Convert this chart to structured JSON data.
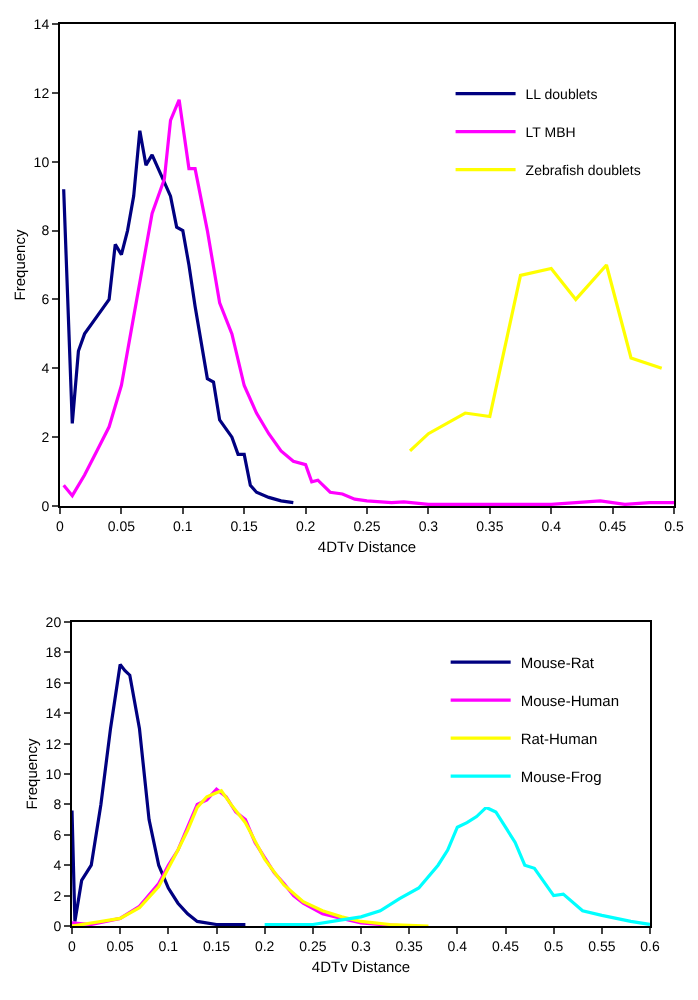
{
  "chart_data": [
    {
      "type": "line",
      "xlabel": "4DTv Distance",
      "ylabel": "Frequency",
      "xlim": [
        0,
        0.5
      ],
      "ylim": [
        0,
        14
      ],
      "xticks": [
        0,
        0.05,
        0.1,
        0.15,
        0.2,
        0.25,
        0.3,
        0.35,
        0.4,
        0.45,
        0.5
      ],
      "yticks": [
        0,
        2,
        4,
        6,
        8,
        10,
        12,
        14
      ],
      "grid": false,
      "legend": "top right",
      "marker": "none",
      "line_style": "solid",
      "series": [
        {
          "name": "LL doublets",
          "color": "#000080",
          "x": [
            0.003,
            0.01,
            0.015,
            0.02,
            0.03,
            0.04,
            0.045,
            0.05,
            0.055,
            0.06,
            0.065,
            0.07,
            0.075,
            0.08,
            0.085,
            0.09,
            0.095,
            0.1,
            0.105,
            0.11,
            0.12,
            0.125,
            0.13,
            0.14,
            0.145,
            0.15,
            0.155,
            0.16,
            0.17,
            0.18,
            0.19
          ],
          "values": [
            9.2,
            2.4,
            4.5,
            5.0,
            5.5,
            6.0,
            7.6,
            7.3,
            8.0,
            9.0,
            10.9,
            9.9,
            10.2,
            9.8,
            9.4,
            9.0,
            8.1,
            8.0,
            7.0,
            5.8,
            3.7,
            3.6,
            2.5,
            2.0,
            1.5,
            1.5,
            0.6,
            0.4,
            0.25,
            0.15,
            0.1
          ]
        },
        {
          "name": "LT MBH",
          "color": "#ff00ff",
          "x": [
            0.003,
            0.01,
            0.02,
            0.03,
            0.04,
            0.05,
            0.06,
            0.065,
            0.07,
            0.075,
            0.085,
            0.09,
            0.097,
            0.105,
            0.11,
            0.12,
            0.13,
            0.14,
            0.15,
            0.16,
            0.17,
            0.18,
            0.19,
            0.2,
            0.205,
            0.21,
            0.22,
            0.23,
            0.24,
            0.25,
            0.27,
            0.28,
            0.3,
            0.35,
            0.4,
            0.44,
            0.46,
            0.48,
            0.5
          ],
          "values": [
            0.6,
            0.3,
            0.9,
            1.6,
            2.3,
            3.5,
            5.5,
            6.5,
            7.5,
            8.5,
            9.5,
            11.2,
            11.8,
            9.8,
            9.8,
            8.0,
            5.9,
            5.0,
            3.5,
            2.7,
            2.1,
            1.6,
            1.3,
            1.2,
            0.7,
            0.75,
            0.4,
            0.35,
            0.2,
            0.15,
            0.1,
            0.12,
            0.05,
            0.05,
            0.05,
            0.15,
            0.05,
            0.1,
            0.1
          ]
        },
        {
          "name": "Zebrafish doublets",
          "color": "#ffff00",
          "x": [
            0.285,
            0.3,
            0.33,
            0.35,
            0.375,
            0.4,
            0.42,
            0.445,
            0.465,
            0.49
          ],
          "values": [
            1.6,
            2.1,
            2.7,
            2.6,
            6.7,
            6.9,
            6.0,
            7.0,
            4.3,
            4.0
          ]
        }
      ]
    },
    {
      "type": "line",
      "xlabel": "4DTv Distance",
      "ylabel": "Frequency",
      "xlim": [
        0,
        0.6
      ],
      "ylim": [
        0,
        20
      ],
      "xticks": [
        0,
        0.05,
        0.1,
        0.15,
        0.2,
        0.25,
        0.3,
        0.35,
        0.4,
        0.45,
        0.5,
        0.55,
        0.6
      ],
      "yticks": [
        0,
        2,
        4,
        6,
        8,
        10,
        12,
        14,
        16,
        18,
        20
      ],
      "grid": false,
      "legend": "top right",
      "marker": "none",
      "line_style": "solid",
      "series": [
        {
          "name": "Mouse-Rat",
          "color": "#000080",
          "x": [
            0,
            0.003,
            0.01,
            0.02,
            0.03,
            0.04,
            0.05,
            0.055,
            0.06,
            0.07,
            0.08,
            0.09,
            0.1,
            0.11,
            0.12,
            0.13,
            0.15,
            0.18
          ],
          "values": [
            7.6,
            0.3,
            3,
            4,
            8,
            13,
            17.2,
            16.8,
            16.5,
            13,
            7,
            4,
            2.5,
            1.5,
            0.8,
            0.3,
            0.1,
            0.1
          ]
        },
        {
          "name": "Mouse-Human",
          "color": "#ff00ff",
          "x": [
            0,
            0.02,
            0.05,
            0.07,
            0.09,
            0.1,
            0.11,
            0.12,
            0.13,
            0.14,
            0.15,
            0.16,
            0.17,
            0.18,
            0.19,
            0.2,
            0.21,
            0.22,
            0.23,
            0.24,
            0.26,
            0.28,
            0.3,
            0.32,
            0.35
          ],
          "values": [
            0.2,
            0.1,
            0.5,
            1.3,
            2.8,
            4,
            5,
            6.5,
            8,
            8.3,
            9.0,
            8.5,
            7.5,
            7,
            5.5,
            4.5,
            3.5,
            2.8,
            2,
            1.5,
            0.8,
            0.5,
            0.2,
            0.1,
            0
          ]
        },
        {
          "name": "Rat-Human",
          "color": "#ffff00",
          "x": [
            0,
            0.05,
            0.07,
            0.09,
            0.1,
            0.11,
            0.12,
            0.13,
            0.14,
            0.155,
            0.165,
            0.18,
            0.19,
            0.2,
            0.22,
            0.24,
            0.26,
            0.28,
            0.3,
            0.33,
            0.37
          ],
          "values": [
            0,
            0.5,
            1.2,
            2.6,
            3.8,
            5,
            6.3,
            7.8,
            8.5,
            8.9,
            8.0,
            6.8,
            5.6,
            4.4,
            2.7,
            1.6,
            1.0,
            0.6,
            0.3,
            0.1,
            0
          ]
        },
        {
          "name": "Mouse-Frog",
          "color": "#00ffff",
          "x": [
            0.2,
            0.25,
            0.28,
            0.3,
            0.32,
            0.34,
            0.36,
            0.38,
            0.39,
            0.4,
            0.41,
            0.42,
            0.43,
            0.44,
            0.45,
            0.46,
            0.47,
            0.48,
            0.5,
            0.51,
            0.53,
            0.55,
            0.58,
            0.6
          ],
          "values": [
            0.1,
            0.1,
            0.4,
            0.6,
            1,
            1.8,
            2.5,
            4,
            5,
            6.5,
            6.8,
            7.2,
            7.8,
            7.5,
            6.5,
            5.5,
            4,
            3.8,
            2,
            2.1,
            1,
            0.7,
            0.3,
            0.1
          ]
        }
      ]
    }
  ]
}
